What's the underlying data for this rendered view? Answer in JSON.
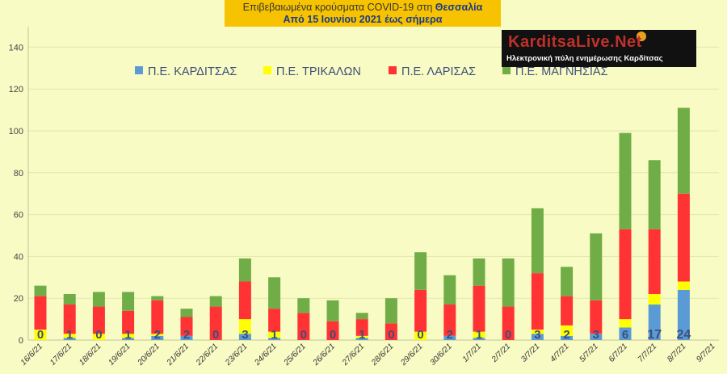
{
  "title": {
    "line1_prefix": "Επιβεβαιωμένα κρούσματα COVID-19 στη ",
    "line1_bold": "Θεσσαλία",
    "line2": "Από 15 Ιουνίου 2021 έως σήμερα"
  },
  "logo": {
    "name": "KarditsaLive.Net",
    "tagline": "Ηλεκτρονική πύλη ενημέρωσης Καρδίτσας"
  },
  "colors": {
    "background": "#f9fbc4",
    "grid": "#e2e6b0",
    "karditsa": "#5b9bd5",
    "trikala": "#ffff00",
    "larisa": "#ff3333",
    "magnisia": "#70ad47",
    "title_box": "#f7c300"
  },
  "chart_data": {
    "type": "bar",
    "stacked": true,
    "categories": [
      "16/6/21",
      "17/6/21",
      "18/6/21",
      "19/6/21",
      "20/6/21",
      "21/6/21",
      "22/6/21",
      "23/6/21",
      "24/6/21",
      "25/6/21",
      "26/6/21",
      "27/6/21",
      "28/6/21",
      "29/6/21",
      "30/6/21",
      "1/7/21",
      "2/7/21",
      "3/7/21",
      "4/7/21",
      "5/7/21",
      "6/7/21",
      "7/7/21",
      "8/7/21",
      "9/7/21"
    ],
    "series": [
      {
        "name": "Π.Ε. ΚΑΡΔΙΤΣΑΣ",
        "color": "#5b9bd5",
        "values": [
          0,
          1,
          0,
          1,
          2,
          2,
          0,
          3,
          1,
          0,
          0,
          1,
          0,
          0,
          2,
          1,
          0,
          3,
          2,
          3,
          6,
          17,
          24,
          null
        ]
      },
      {
        "name": "Π.Ε. ΤΡΙΚΑΛΩΝ",
        "color": "#ffff00",
        "values": [
          5,
          2,
          3,
          2,
          1,
          0,
          0,
          7,
          3,
          0,
          0,
          1,
          0,
          4,
          0,
          3,
          0,
          2,
          5,
          0,
          4,
          5,
          4,
          null
        ]
      },
      {
        "name": "Π.Ε. ΛΑΡΙΣΑΣ",
        "color": "#ff3333",
        "values": [
          16,
          14,
          13,
          11,
          16,
          9,
          16,
          18,
          11,
          13,
          9,
          8,
          8,
          20,
          15,
          22,
          16,
          27,
          14,
          16,
          43,
          31,
          42,
          null
        ]
      },
      {
        "name": "Π.Ε. ΜΑΓΝΗΣΙΑΣ",
        "color": "#70ad47",
        "values": [
          5,
          5,
          7,
          9,
          2,
          4,
          5,
          11,
          15,
          7,
          10,
          3,
          12,
          18,
          14,
          13,
          23,
          31,
          14,
          32,
          46,
          33,
          41,
          null
        ]
      }
    ],
    "data_labels": [
      "0",
      "1",
      "0",
      "1",
      "2",
      "2",
      "0",
      "3",
      "1",
      "0",
      "0",
      "1",
      "0",
      "0",
      "2",
      "1",
      "0",
      "3",
      "2",
      "3",
      "6",
      "17",
      "24",
      ""
    ],
    "y_ticks": [
      0,
      20,
      40,
      60,
      80,
      100,
      120,
      140
    ],
    "ylim": [
      0,
      150
    ],
    "grid": true,
    "legend_position": "top"
  }
}
